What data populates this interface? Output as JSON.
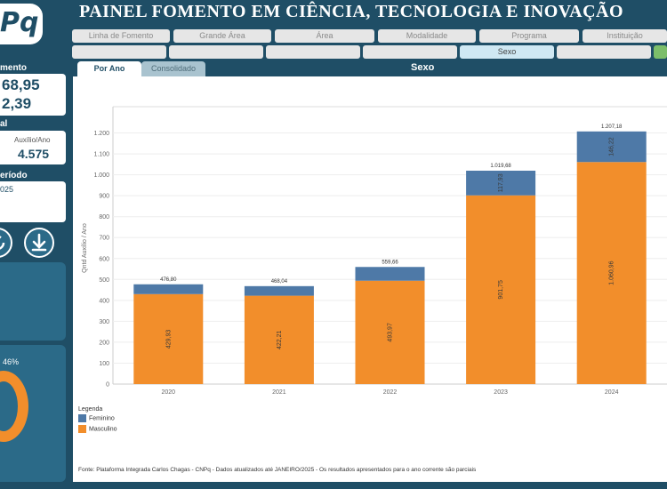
{
  "header": {
    "logo_text": "Pq",
    "title": "PAINEL FOMENTO EM CIÊNCIA, TECNOLOGIA E INOVAÇÃO"
  },
  "filters_row1": [
    "Linha de Fomento",
    "Grande Área",
    "Área",
    "Modalidade",
    "Programa",
    "Instituição"
  ],
  "filters_row2": [
    "",
    "",
    "",
    "",
    "Sexo",
    "",
    ""
  ],
  "left_panel": {
    "box1_head": "mento",
    "box1_values": [
      "68,95",
      "2,39"
    ],
    "box2_head": "al",
    "box2_label": "Auxílio/Ano",
    "box2_value": "4.575",
    "box3_head": "eríodo",
    "box3_value": "025",
    "donut_pct": "46%"
  },
  "tabs": [
    {
      "label": "Por Ano",
      "active": true
    },
    {
      "label": "Consolidado",
      "active": false
    }
  ],
  "chart_title": "Sexo",
  "chart_data": {
    "type": "bar",
    "stacked": true,
    "categories": [
      "2020",
      "2021",
      "2022",
      "2023",
      "2024"
    ],
    "series": [
      {
        "name": "Masculino",
        "color": "#f28e2b",
        "values": [
          429.93,
          422.21,
          493.97,
          901.75,
          1060.96
        ],
        "labels": [
          "429,93",
          "422,21",
          "493,97",
          "901,75",
          "1.060,96"
        ]
      },
      {
        "name": "Feminino",
        "color": "#4e79a7",
        "values": [
          46.87,
          45.83,
          65.69,
          117.93,
          146.22
        ],
        "labels": [
          "",
          "",
          "",
          "117,93",
          "146,22"
        ]
      }
    ],
    "totals": [
      "476,80",
      "468,04",
      "559,66",
      "1.019,68",
      "1.207,18"
    ],
    "ylabel": "Qntd Auxílio / Ano",
    "ylim": [
      0,
      1300
    ],
    "yticks": [
      0,
      100,
      200,
      300,
      400,
      500,
      600,
      700,
      800,
      900,
      1000,
      1100,
      1200
    ],
    "ytick_labels": [
      "0",
      "100",
      "200",
      "300",
      "400",
      "500",
      "600",
      "700",
      "800",
      "900",
      "1.000",
      "1.100",
      "1.200"
    ],
    "grid": true,
    "legend": {
      "title": "Legenda",
      "placement": "bottom-left",
      "entries": [
        "Feminino",
        "Masculino"
      ]
    }
  },
  "source": "Fonte: Plataforma Integrada Carlos Chagas - CNPq - Dados atualizados até JANEIRO/2025 - Os resultados apresentados para o ano corrente são parciais"
}
